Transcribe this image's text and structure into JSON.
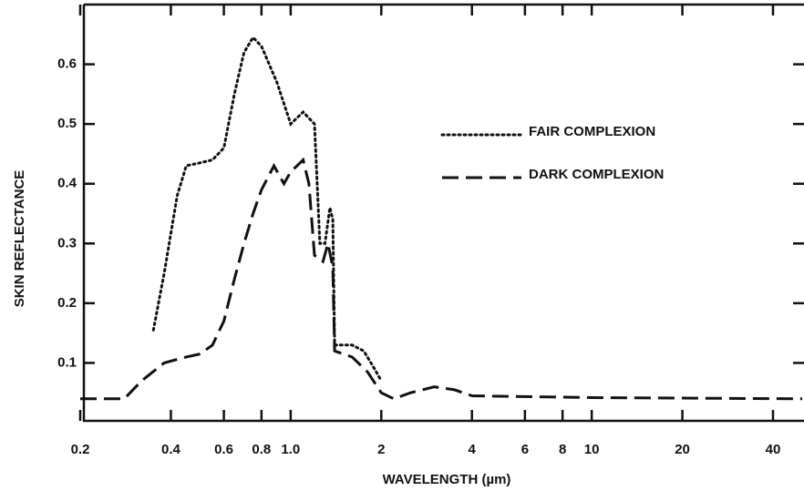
{
  "chart_data": {
    "type": "line",
    "xlabel": "WAVELENGTH (µm)",
    "ylabel": "SKIN REFLECTANCE",
    "xscale": "log",
    "xlim": [
      0.2,
      50
    ],
    "ylim": [
      0,
      0.7
    ],
    "xticks": [
      0.2,
      0.4,
      0.6,
      0.8,
      {
        "value": 1,
        "label": "1.0"
      },
      2,
      4,
      6,
      8,
      10,
      20,
      40
    ],
    "yticks": [
      0.1,
      0.2,
      0.3,
      0.4,
      0.5,
      0.6
    ],
    "legend": "upper right",
    "series": [
      {
        "name": "FAIR COMPLEXION",
        "color": "#111111",
        "dash": "dotted",
        "x": [
          0.35,
          0.38,
          0.42,
          0.45,
          0.5,
          0.55,
          0.6,
          0.65,
          0.7,
          0.75,
          0.8,
          0.9,
          1.0,
          1.1,
          1.2,
          1.25,
          1.3,
          1.35,
          1.38,
          1.4,
          1.6,
          1.75,
          1.9,
          2.0
        ],
        "values": [
          0.155,
          0.25,
          0.38,
          0.43,
          0.435,
          0.44,
          0.46,
          0.55,
          0.62,
          0.645,
          0.63,
          0.57,
          0.5,
          0.52,
          0.5,
          0.3,
          0.3,
          0.36,
          0.34,
          0.13,
          0.13,
          0.12,
          0.09,
          0.07
        ]
      },
      {
        "name": "DARK COMPLEXION",
        "color": "#111111",
        "dash": "dashed",
        "x": [
          0.2,
          0.28,
          0.32,
          0.38,
          0.45,
          0.5,
          0.55,
          0.6,
          0.65,
          0.7,
          0.75,
          0.8,
          0.88,
          0.95,
          1.0,
          1.05,
          1.1,
          1.15,
          1.2,
          1.28,
          1.33,
          1.38,
          1.4,
          1.6,
          1.8,
          2.0,
          2.2,
          2.5,
          3.0,
          3.5,
          4.0,
          10,
          50
        ],
        "values": [
          0.04,
          0.04,
          0.07,
          0.1,
          0.11,
          0.115,
          0.13,
          0.17,
          0.24,
          0.3,
          0.35,
          0.39,
          0.43,
          0.4,
          0.42,
          0.43,
          0.44,
          0.4,
          0.28,
          0.27,
          0.3,
          0.26,
          0.12,
          0.11,
          0.085,
          0.05,
          0.04,
          0.05,
          0.06,
          0.055,
          0.045,
          0.042,
          0.04
        ]
      }
    ]
  }
}
